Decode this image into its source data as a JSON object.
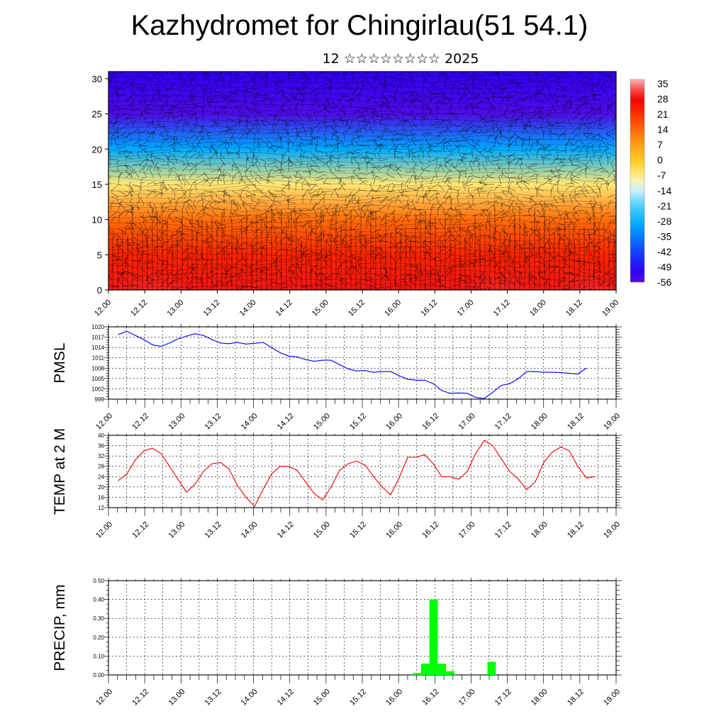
{
  "title": "Kazhydromet for Chingirlau(51 54.1)",
  "subtitle": "12 ☆☆☆☆☆☆☆☆ 2025",
  "time_labels": [
    "12.00",
    "12.12",
    "13.00",
    "13.12",
    "14.00",
    "14.12",
    "15.00",
    "15.12",
    "16.00",
    "16.12",
    "17.00",
    "17.12",
    "18.00",
    "18.12",
    "19.00"
  ],
  "chart_data": [
    {
      "type": "heatmap",
      "x_ticks": [
        "12.00",
        "12.12",
        "13.00",
        "13.12",
        "14.00",
        "14.12",
        "15.00",
        "15.12",
        "16.00",
        "16.12",
        "17.00",
        "17.12",
        "18.00",
        "18.12",
        "19.00"
      ],
      "y_ticks": [
        0,
        5,
        10,
        15,
        20,
        25,
        30
      ],
      "ylim": [
        0,
        31
      ],
      "colorbar_labels": [
        "35",
        "28",
        "21",
        "14",
        "7",
        "0",
        "-7",
        "-14",
        "-21",
        "-28",
        "-35",
        "-42",
        "-49",
        "-56"
      ],
      "levels": [
        {
          "h": 0,
          "t": 28
        },
        {
          "h": 5,
          "t": 21
        },
        {
          "h": 10,
          "t": 12
        },
        {
          "h": 15,
          "t": -7
        },
        {
          "h": 20,
          "t": -30
        },
        {
          "h": 25,
          "t": -55
        },
        {
          "h": 31,
          "t": -52
        }
      ],
      "overlay": "wind barbs"
    },
    {
      "type": "line",
      "ylabel": "PMSL",
      "ylim": [
        999,
        1020
      ],
      "y_ticks": [
        "1020",
        "1017",
        "1014",
        "1011",
        "1008",
        "1005",
        "1002",
        "999"
      ],
      "x_ticks": [
        "12.00",
        "12.12",
        "13.00",
        "13.12",
        "14.00",
        "14.12",
        "15.00",
        "15.12",
        "16.00",
        "16.12",
        "17.00",
        "17.12",
        "18.00",
        "18.12",
        "19.00"
      ],
      "grid": true,
      "series": [
        {
          "values": [
            1017.8,
            1018.7,
            1017.5,
            1016.3,
            1014.8,
            1014.3,
            1015.3,
            1016.5,
            1017.3,
            1018.0,
            1017.5,
            1016.3,
            1015.3,
            1015.1,
            1015.5,
            1015.0,
            1015.2,
            1015.5,
            1014.0,
            1012.5,
            1011.5,
            1011.3,
            1010.5,
            1010.0,
            1010.3,
            1010.3,
            1009.0,
            1007.8,
            1007.2,
            1007.3,
            1006.8,
            1007.0,
            1007.0,
            1005.8,
            1004.8,
            1004.5,
            1004.5,
            1003.5,
            1001.5,
            1000.7,
            1000.8,
            1000.7,
            999.5,
            999.2,
            1001.0,
            1003.0,
            1003.5,
            1005.0,
            1007.0,
            1007.0,
            1006.8,
            1006.8,
            1006.7,
            1006.5,
            1006.3,
            1008.0
          ],
          "color": "#0000ee"
        }
      ]
    },
    {
      "type": "line",
      "ylabel": "TEMP at 2 M",
      "ylim": [
        12,
        40
      ],
      "y_ticks": [
        "40",
        "36",
        "32",
        "28",
        "24",
        "20",
        "16",
        "12"
      ],
      "x_ticks": [
        "12.00",
        "12.12",
        "13.00",
        "13.12",
        "14.00",
        "14.12",
        "15.00",
        "15.12",
        "16.00",
        "16.12",
        "17.00",
        "17.12",
        "18.00",
        "18.12",
        "19.00"
      ],
      "grid": true,
      "series": [
        {
          "values": [
            22.5,
            25,
            30.5,
            34,
            35,
            33,
            28,
            23,
            18,
            21,
            26,
            29,
            29.5,
            27,
            20.5,
            16,
            12.5,
            19,
            25,
            28,
            28,
            26.5,
            22,
            17.5,
            15,
            20,
            26.5,
            29,
            30,
            28.5,
            24,
            20,
            17,
            23.5,
            31.5,
            31.5,
            32.5,
            29,
            24,
            24,
            23,
            26,
            33,
            38,
            36,
            31,
            26,
            23,
            19,
            22,
            29.5,
            33.5,
            35.5,
            34,
            28,
            23.5,
            24
          ],
          "color": "#ee0000"
        }
      ]
    },
    {
      "type": "bar",
      "ylabel": "PRECIP, mm",
      "ylim": [
        0,
        0.5
      ],
      "y_ticks": [
        "0.50",
        "0.40",
        "0.30",
        "0.20",
        "0.10",
        "0.00"
      ],
      "x_ticks": [
        "12.00",
        "12.12",
        "13.00",
        "13.12",
        "14.00",
        "14.12",
        "15.00",
        "15.12",
        "16.00",
        "16.12",
        "17.00",
        "17.12",
        "18.00",
        "18.12",
        "19.00"
      ],
      "grid": true,
      "bar_color": "#00ff00",
      "bars": [
        {
          "t": 36,
          "v": 0.01
        },
        {
          "t": 37,
          "v": 0.06
        },
        {
          "t": 38,
          "v": 0.4
        },
        {
          "t": 39,
          "v": 0.06
        },
        {
          "t": 40,
          "v": 0.02
        },
        {
          "t": 45,
          "v": 0.07
        }
      ]
    }
  ]
}
